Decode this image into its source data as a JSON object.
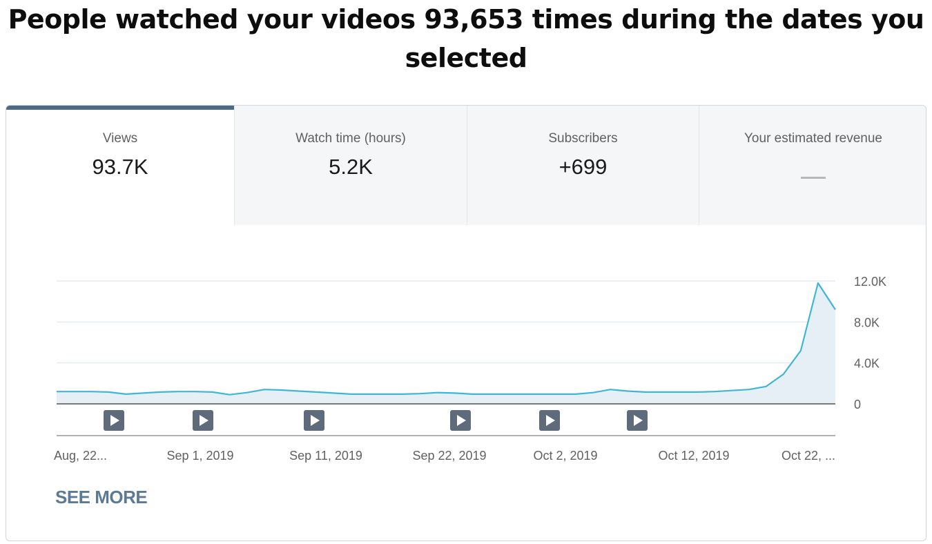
{
  "headline": "People watched your videos 93,653 times during the dates you selected",
  "tabs": [
    {
      "label": "Views",
      "value": "93.7K",
      "active": true
    },
    {
      "label": "Watch time (hours)",
      "value": "5.2K",
      "active": false
    },
    {
      "label": "Subscribers",
      "value": "+699",
      "active": false
    },
    {
      "label": "Your estimated revenue",
      "value": "—",
      "active": false
    }
  ],
  "see_more_label": "SEE MORE",
  "colors": {
    "line": "#3fb6d6",
    "area": "#e6eff5",
    "active_tab_bar": "#4b6b86",
    "marker": "#5f6b7a",
    "see_more": "#5a7a96"
  },
  "chart_data": {
    "type": "area",
    "series": [
      {
        "values": [
          1200,
          1200,
          1200,
          1150,
          950,
          1050,
          1150,
          1200,
          1200,
          1150,
          900,
          1100,
          1400,
          1350,
          1250,
          1150,
          1050,
          950,
          950,
          950,
          950,
          1000,
          1100,
          1050,
          950,
          950,
          950,
          950,
          950,
          950,
          950,
          1100,
          1400,
          1250,
          1150,
          1150,
          1150,
          1150,
          1200,
          1300,
          1400,
          1700,
          2900,
          5200,
          11800,
          9200
        ]
      }
    ],
    "x_tick_labels": [
      "Aug, 22...",
      "Sep 1, 2019",
      "Sep 11, 2019",
      "Sep 22, 2019",
      "Oct 2, 2019",
      "Oct 12, 2019",
      "Oct 22, ..."
    ],
    "y_ticks": [
      0,
      4000,
      8000,
      12000
    ],
    "y_tick_labels": [
      "0",
      "4.0K",
      "8.0K",
      "12.0K"
    ],
    "ylim": [
      0,
      12000
    ],
    "grid": true,
    "video_markers": 6
  }
}
